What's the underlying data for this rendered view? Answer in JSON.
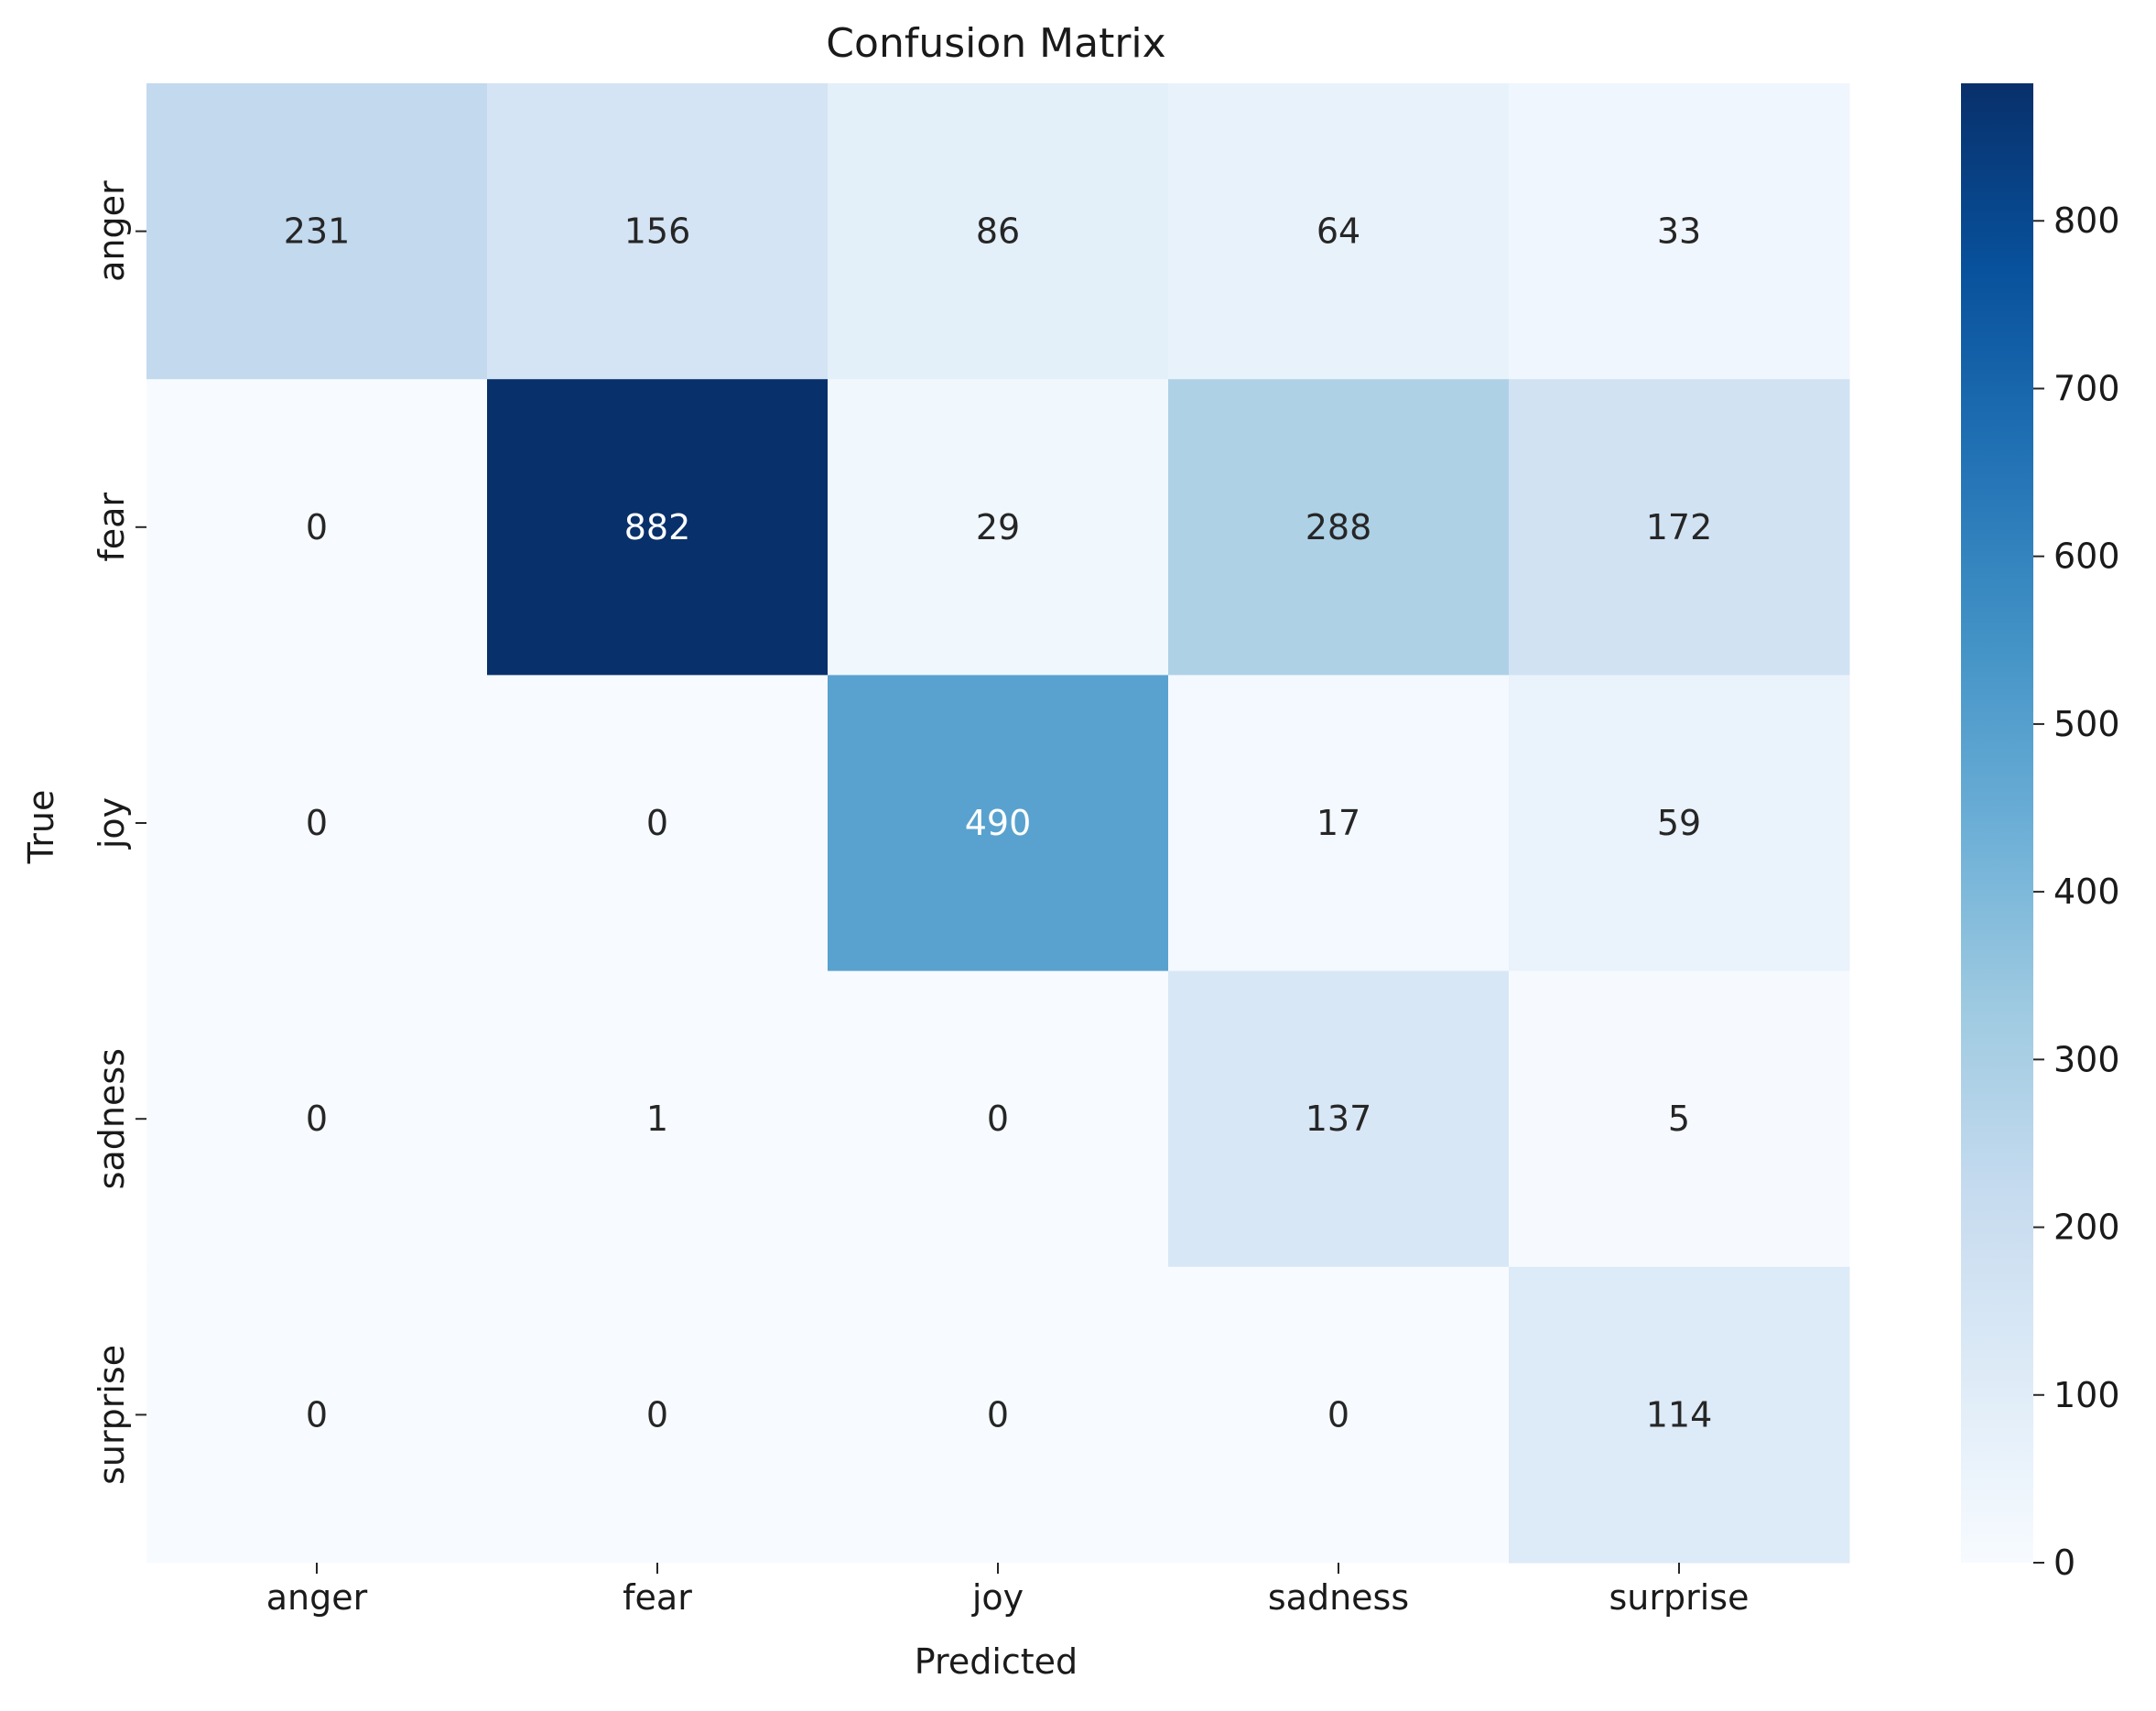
{
  "chart_data": {
    "type": "heatmap",
    "title": "Confusion Matrix",
    "xlabel": "Predicted",
    "ylabel": "True",
    "x_categories": [
      "anger",
      "fear",
      "joy",
      "sadness",
      "surprise"
    ],
    "y_categories": [
      "anger",
      "fear",
      "joy",
      "sadness",
      "surprise"
    ],
    "values": [
      [
        231,
        156,
        86,
        64,
        33
      ],
      [
        0,
        882,
        29,
        288,
        172
      ],
      [
        0,
        0,
        490,
        17,
        59
      ],
      [
        0,
        1,
        0,
        137,
        5
      ],
      [
        0,
        0,
        0,
        0,
        114
      ]
    ],
    "colorbar": {
      "min": 0,
      "max": 882,
      "ticks": [
        0,
        100,
        200,
        300,
        400,
        500,
        600,
        700,
        800
      ]
    },
    "colormap": "Blues",
    "annotation_dark_color": "#262626",
    "annotation_light_color": "#ffffff"
  }
}
